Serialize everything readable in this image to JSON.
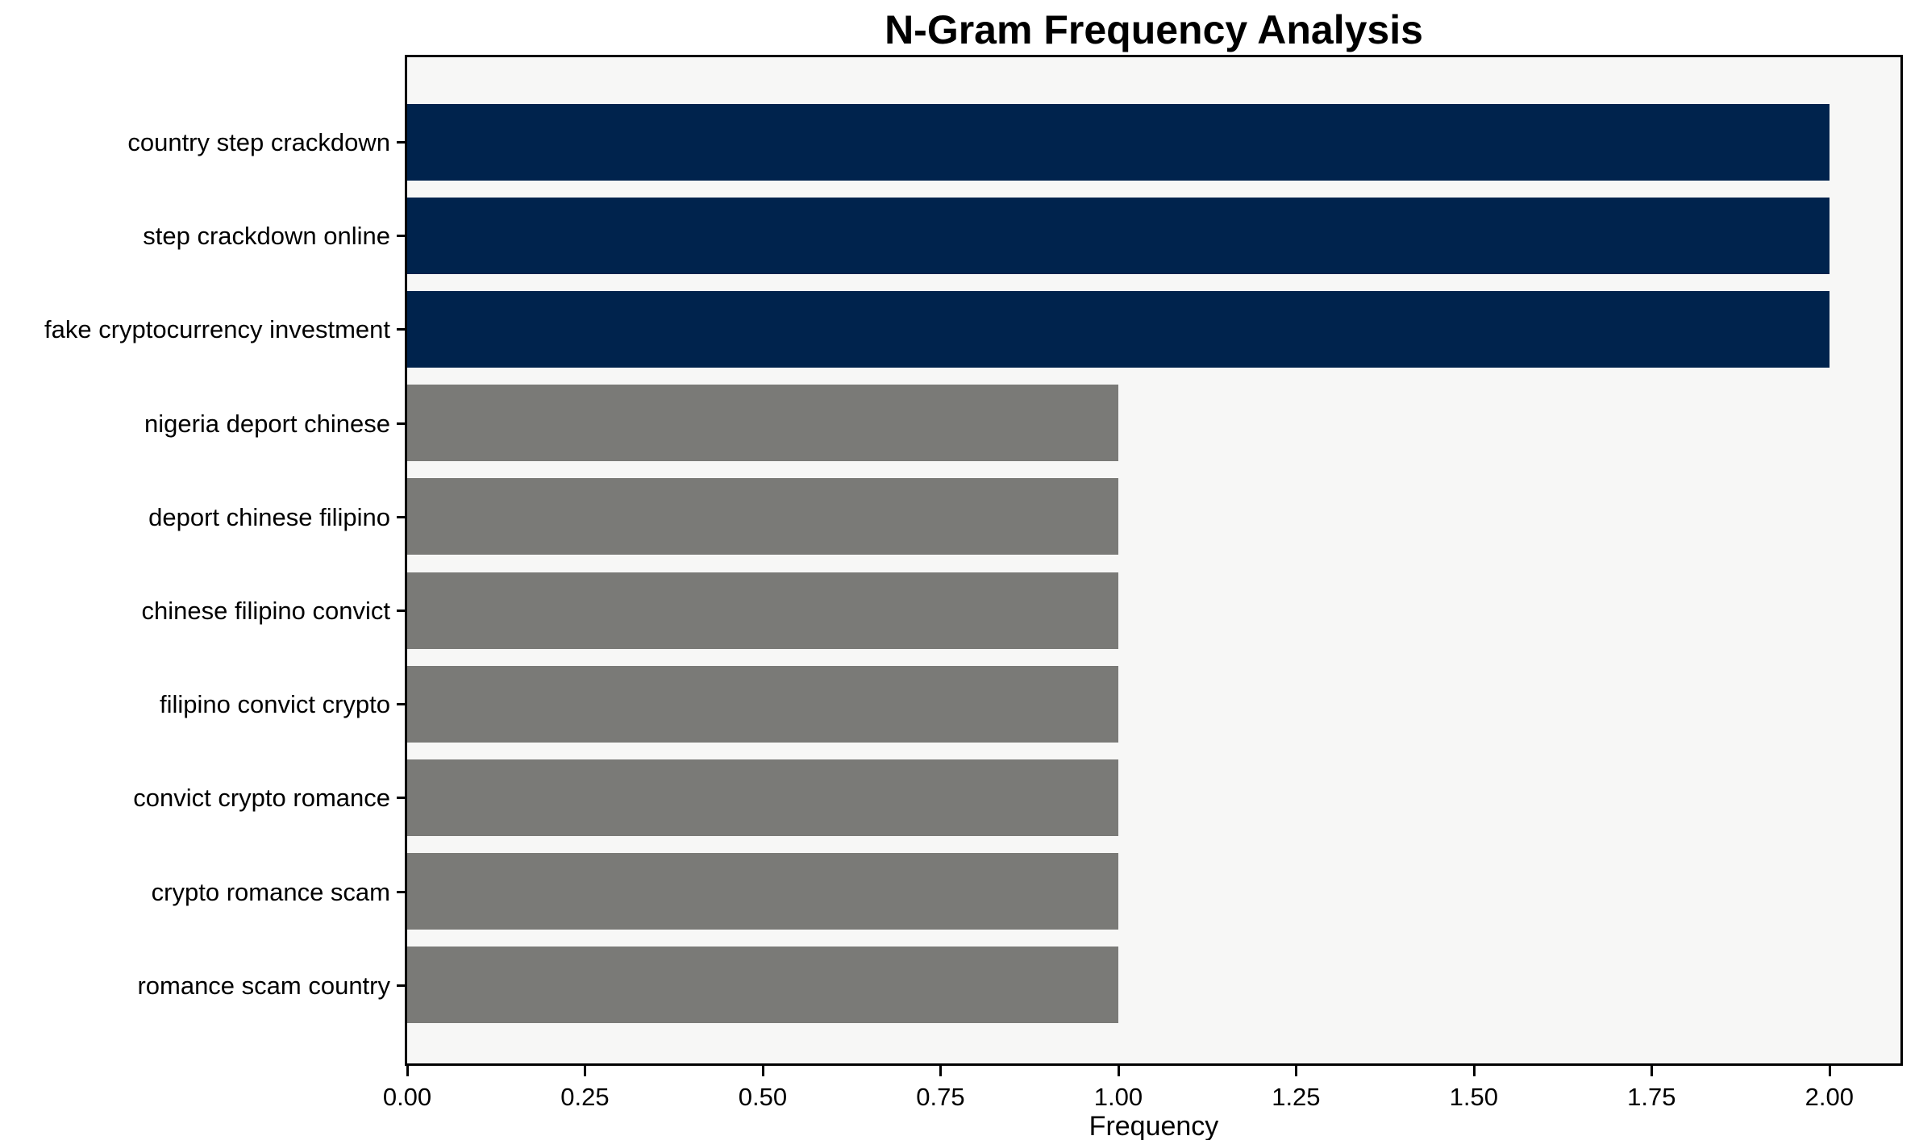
{
  "chart_data": {
    "type": "bar",
    "orientation": "horizontal",
    "title": "N-Gram Frequency Analysis",
    "xlabel": "Frequency",
    "ylabel": "",
    "categories": [
      "country step crackdown",
      "step crackdown online",
      "fake cryptocurrency investment",
      "nigeria deport chinese",
      "deport chinese filipino",
      "chinese filipino convict",
      "filipino convict crypto",
      "convict crypto romance",
      "crypto romance scam",
      "romance scam country"
    ],
    "values": [
      2,
      2,
      2,
      1,
      1,
      1,
      1,
      1,
      1,
      1
    ],
    "bar_colors": [
      "#00234d",
      "#00234d",
      "#00234d",
      "#7a7a77",
      "#7a7a77",
      "#7a7a77",
      "#7a7a77",
      "#7a7a77",
      "#7a7a77",
      "#7a7a77"
    ],
    "colors": {
      "highlight": "#00234d",
      "default": "#7a7a77",
      "plot_background": "#f7f7f6",
      "figure_background": "#ffffff",
      "spine": "#000000",
      "text": "#000000"
    },
    "xlim": [
      0,
      2.1
    ],
    "x_ticks": [
      {
        "value": 0.0,
        "label": "0.00"
      },
      {
        "value": 0.25,
        "label": "0.25"
      },
      {
        "value": 0.5,
        "label": "0.50"
      },
      {
        "value": 0.75,
        "label": "0.75"
      },
      {
        "value": 1.0,
        "label": "1.00"
      },
      {
        "value": 1.25,
        "label": "1.25"
      },
      {
        "value": 1.5,
        "label": "1.50"
      },
      {
        "value": 1.75,
        "label": "1.75"
      },
      {
        "value": 2.0,
        "label": "2.00"
      }
    ],
    "grid": false,
    "legend": null
  }
}
